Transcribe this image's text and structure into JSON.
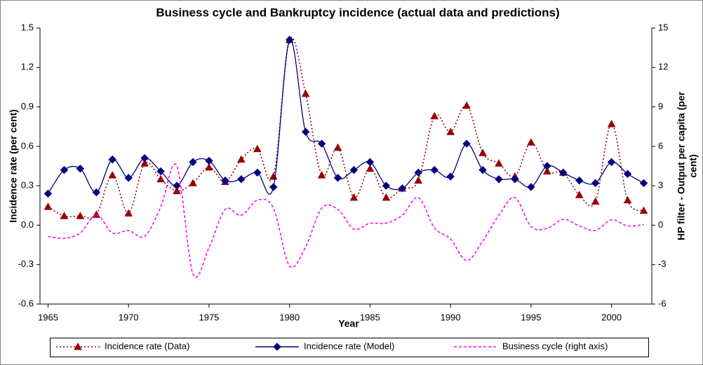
{
  "chart_data": {
    "type": "line",
    "title": "Business cycle and Bankruptcy incidence (actual data and predictions)",
    "xlabel": "Year",
    "ylabel": "Incidence rate (per cent)",
    "y2label": [
      "HP filter - Output per capita (per",
      "cent)"
    ],
    "x": [
      1965,
      1966,
      1967,
      1968,
      1969,
      1970,
      1971,
      1972,
      1973,
      1974,
      1975,
      1976,
      1977,
      1978,
      1979,
      1980,
      1981,
      1982,
      1983,
      1984,
      1985,
      1986,
      1987,
      1988,
      1989,
      1990,
      1991,
      1992,
      1993,
      1994,
      1995,
      1996,
      1997,
      1998,
      1999,
      2000,
      2001,
      2002
    ],
    "xlim": [
      1964.5,
      2002.5
    ],
    "xticks": [
      1965,
      1970,
      1975,
      1980,
      1985,
      1990,
      1995,
      2000
    ],
    "ylim": [
      -0.6,
      1.5
    ],
    "yticks": [
      -0.6,
      -0.3,
      {
        "value": 0,
        "label": "0.0"
      },
      0.3,
      0.6,
      0.9,
      1.2,
      1.5
    ],
    "y2lim": [
      -6,
      15
    ],
    "y2ticks": [
      -6,
      -3,
      0,
      3,
      6,
      9,
      12,
      15
    ],
    "series": [
      {
        "name": "Incidence rate (Data)",
        "color": "#990000",
        "line_style": "dotted",
        "marker": "triangle",
        "values": [
          0.14,
          0.07,
          0.07,
          0.08,
          0.38,
          0.09,
          0.47,
          0.35,
          0.26,
          0.32,
          0.44,
          0.33,
          0.5,
          0.58,
          0.37,
          1.41,
          1.0,
          0.38,
          0.59,
          0.21,
          0.43,
          0.21,
          0.28,
          0.34,
          0.83,
          0.71,
          0.91,
          0.55,
          0.47,
          0.37,
          0.63,
          0.41,
          0.4,
          0.23,
          0.18,
          0.77,
          0.19,
          0.11
        ]
      },
      {
        "name": "Incidence rate (Model)",
        "color": "#000080",
        "line_style": "solid",
        "marker": "diamond",
        "values": [
          0.24,
          0.42,
          0.43,
          0.25,
          0.5,
          0.36,
          0.51,
          0.41,
          0.3,
          0.48,
          0.49,
          0.34,
          0.35,
          0.4,
          0.29,
          1.41,
          0.71,
          0.62,
          0.36,
          0.42,
          0.48,
          0.3,
          0.28,
          0.4,
          0.42,
          0.37,
          0.62,
          0.42,
          0.35,
          0.35,
          0.29,
          0.45,
          0.4,
          0.34,
          0.32,
          0.48,
          0.39,
          0.32
        ]
      },
      {
        "name": "Business cycle (right axis)",
        "color": "#ff00ff",
        "line_style": "dashed",
        "axis": "y2",
        "values": [
          -0.85,
          -1.0,
          -0.6,
          0.8,
          -0.6,
          -0.4,
          -0.85,
          1.4,
          4.5,
          -3.7,
          -1.7,
          1.2,
          0.75,
          1.9,
          1.3,
          -3.1,
          -1.65,
          1.3,
          1.2,
          -0.3,
          0.15,
          0.15,
          0.75,
          2.1,
          -0.2,
          -1.05,
          -2.7,
          -1.2,
          0.75,
          2.1,
          -0.1,
          -0.25,
          0.45,
          -0.05,
          -0.4,
          0.4,
          -0.05,
          0.05
        ]
      }
    ]
  }
}
